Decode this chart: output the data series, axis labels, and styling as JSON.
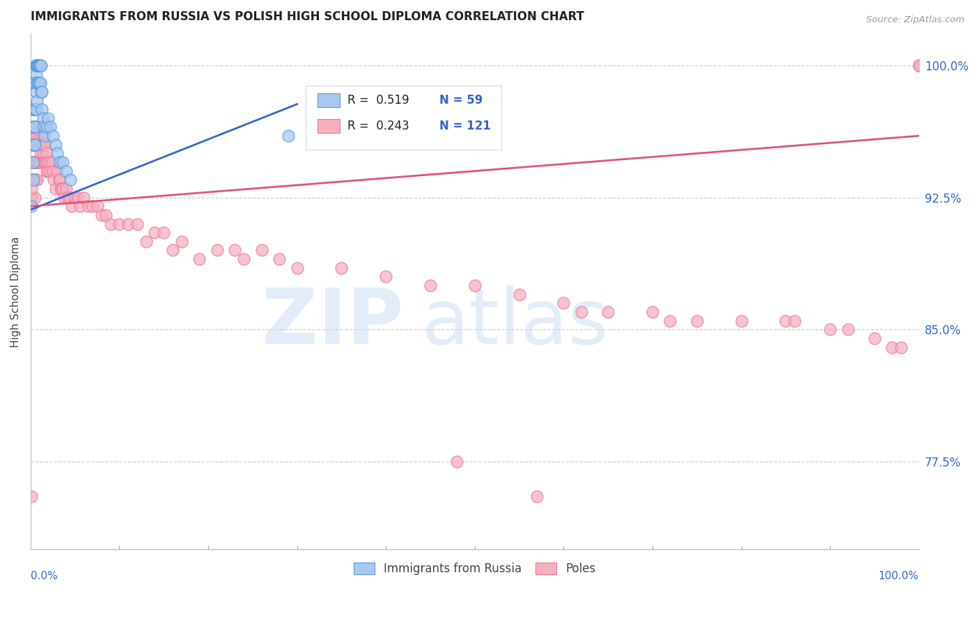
{
  "title": "IMMIGRANTS FROM RUSSIA VS POLISH HIGH SCHOOL DIPLOMA CORRELATION CHART",
  "source": "Source: ZipAtlas.com",
  "ylabel": "High School Diploma",
  "ytick_labels": [
    "77.5%",
    "85.0%",
    "92.5%",
    "100.0%"
  ],
  "ytick_values": [
    0.775,
    0.85,
    0.925,
    1.0
  ],
  "xmin": 0.0,
  "xmax": 1.0,
  "ymin": 0.725,
  "ymax": 1.018,
  "legend_label_blue": "Immigrants from Russia",
  "legend_label_pink": "Poles",
  "blue_color": "#A8C8F0",
  "pink_color": "#F5B0C0",
  "blue_edge_color": "#5599DD",
  "pink_edge_color": "#EE7799",
  "blue_line_color": "#3366CC",
  "pink_line_color": "#DD5577",
  "watermark_zip": "ZIP",
  "watermark_atlas": "atlas",
  "legend_R_blue": "R =  0.519",
  "legend_N_blue": "N = 59",
  "legend_R_pink": "R =  0.243",
  "legend_N_pink": "N = 121",
  "blue_scatter_x": [
    0.001,
    0.002,
    0.002,
    0.003,
    0.003,
    0.003,
    0.003,
    0.003,
    0.003,
    0.004,
    0.004,
    0.004,
    0.004,
    0.005,
    0.005,
    0.005,
    0.005,
    0.006,
    0.006,
    0.006,
    0.006,
    0.006,
    0.006,
    0.006,
    0.007,
    0.007,
    0.007,
    0.007,
    0.007,
    0.008,
    0.008,
    0.008,
    0.008,
    0.009,
    0.009,
    0.009,
    0.01,
    0.01,
    0.01,
    0.011,
    0.011,
    0.012,
    0.012,
    0.013,
    0.013,
    0.014,
    0.015,
    0.016,
    0.018,
    0.02,
    0.022,
    0.025,
    0.028,
    0.03,
    0.033,
    0.036,
    0.04,
    0.045,
    0.29
  ],
  "blue_scatter_y": [
    0.92,
    0.975,
    0.965,
    0.99,
    0.975,
    0.965,
    0.955,
    0.945,
    0.935,
    0.99,
    0.975,
    0.965,
    0.955,
    0.99,
    0.975,
    0.965,
    0.955,
    1.0,
    1.0,
    1.0,
    1.0,
    0.995,
    0.985,
    0.975,
    1.0,
    1.0,
    1.0,
    0.99,
    0.98,
    1.0,
    1.0,
    1.0,
    0.99,
    1.0,
    1.0,
    0.99,
    1.0,
    1.0,
    0.99,
    1.0,
    0.99,
    1.0,
    0.985,
    0.985,
    0.975,
    0.97,
    0.965,
    0.96,
    0.965,
    0.97,
    0.965,
    0.96,
    0.955,
    0.95,
    0.945,
    0.945,
    0.94,
    0.935,
    0.96
  ],
  "pink_scatter_x": [
    0.001,
    0.001,
    0.001,
    0.002,
    0.002,
    0.002,
    0.002,
    0.003,
    0.003,
    0.003,
    0.003,
    0.004,
    0.004,
    0.004,
    0.005,
    0.005,
    0.005,
    0.005,
    0.005,
    0.006,
    0.006,
    0.006,
    0.006,
    0.007,
    0.007,
    0.007,
    0.007,
    0.008,
    0.008,
    0.008,
    0.009,
    0.009,
    0.009,
    0.01,
    0.01,
    0.01,
    0.011,
    0.011,
    0.012,
    0.012,
    0.013,
    0.013,
    0.013,
    0.014,
    0.014,
    0.015,
    0.015,
    0.016,
    0.016,
    0.017,
    0.018,
    0.018,
    0.019,
    0.02,
    0.021,
    0.022,
    0.024,
    0.025,
    0.026,
    0.028,
    0.03,
    0.032,
    0.033,
    0.034,
    0.035,
    0.036,
    0.038,
    0.04,
    0.042,
    0.044,
    0.046,
    0.05,
    0.053,
    0.056,
    0.06,
    0.065,
    0.07,
    0.075,
    0.08,
    0.085,
    0.09,
    0.1,
    0.11,
    0.12,
    0.13,
    0.14,
    0.15,
    0.16,
    0.17,
    0.19,
    0.21,
    0.23,
    0.24,
    0.26,
    0.28,
    0.3,
    0.35,
    0.4,
    0.45,
    0.5,
    0.55,
    0.6,
    0.62,
    0.65,
    0.7,
    0.72,
    0.75,
    0.8,
    0.85,
    0.86,
    0.9,
    0.92,
    0.95,
    0.97,
    0.98,
    1.0,
    1.0,
    1.0,
    0.48,
    0.57,
    0.001
  ],
  "pink_scatter_y": [
    0.755,
    0.925,
    0.955,
    0.96,
    0.955,
    0.945,
    0.935,
    0.96,
    0.955,
    0.945,
    0.935,
    0.96,
    0.955,
    0.945,
    0.965,
    0.955,
    0.945,
    0.935,
    0.925,
    0.965,
    0.955,
    0.945,
    0.935,
    0.96,
    0.955,
    0.945,
    0.935,
    0.965,
    0.955,
    0.945,
    0.965,
    0.955,
    0.945,
    0.965,
    0.955,
    0.945,
    0.96,
    0.95,
    0.965,
    0.955,
    0.965,
    0.955,
    0.945,
    0.96,
    0.95,
    0.955,
    0.945,
    0.955,
    0.945,
    0.945,
    0.95,
    0.94,
    0.945,
    0.94,
    0.945,
    0.94,
    0.945,
    0.94,
    0.935,
    0.93,
    0.94,
    0.935,
    0.935,
    0.93,
    0.93,
    0.93,
    0.925,
    0.93,
    0.925,
    0.925,
    0.92,
    0.925,
    0.925,
    0.92,
    0.925,
    0.92,
    0.92,
    0.92,
    0.915,
    0.915,
    0.91,
    0.91,
    0.91,
    0.91,
    0.9,
    0.905,
    0.905,
    0.895,
    0.9,
    0.89,
    0.895,
    0.895,
    0.89,
    0.895,
    0.89,
    0.885,
    0.885,
    0.88,
    0.875,
    0.875,
    0.87,
    0.865,
    0.86,
    0.86,
    0.86,
    0.855,
    0.855,
    0.855,
    0.855,
    0.855,
    0.85,
    0.85,
    0.845,
    0.84,
    0.84,
    1.0,
    1.0,
    1.0,
    0.775,
    0.755,
    0.93
  ],
  "blue_trend_x": [
    0.0,
    0.3
  ],
  "blue_trend_y": [
    0.918,
    0.978
  ],
  "pink_trend_x": [
    0.0,
    1.0
  ],
  "pink_trend_y": [
    0.92,
    0.96
  ]
}
